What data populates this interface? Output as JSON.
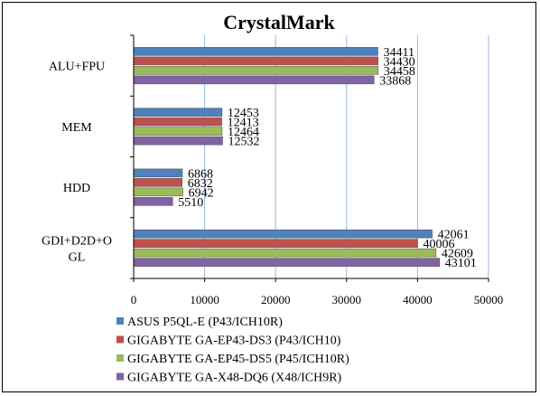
{
  "chart_data": {
    "type": "bar",
    "orientation": "horizontal",
    "title": "CrystalMark",
    "categories": [
      "ALU+FPU",
      "MEM",
      "HDD",
      "GDI+D2D+OGL"
    ],
    "category_display": [
      [
        "ALU+FPU"
      ],
      [
        "MEM"
      ],
      [
        "HDD"
      ],
      [
        "GDI+D2D+O",
        "GL"
      ]
    ],
    "xlim": [
      0,
      50000
    ],
    "xticks": [
      0,
      10000,
      20000,
      30000,
      40000,
      50000
    ],
    "xtick_labels": [
      "0",
      "10000",
      "20000",
      "30000",
      "40000",
      "50000"
    ],
    "grid": true,
    "legend_position": "bottom",
    "series": [
      {
        "name": "ASUS P5QL-E (P43/ICH10R)",
        "color": "#4F81BD",
        "values": [
          34411,
          12453,
          6868,
          42061
        ]
      },
      {
        "name": "GIGABYTE GA-EP43-DS3 (P43/ICH10)",
        "color": "#C0504D",
        "values": [
          34430,
          12413,
          6832,
          40006
        ]
      },
      {
        "name": "GIGABYTE GA-EP45-DS5 (P45/ICH10R)",
        "color": "#9BBB59",
        "values": [
          34458,
          12464,
          6942,
          42609
        ]
      },
      {
        "name": "GIGABYTE GA-X48-DQ6 (X48/ICH9R)",
        "color": "#8064A2",
        "values": [
          33868,
          12532,
          5510,
          43101
        ]
      }
    ],
    "gridline_color": "#9BB7E0"
  }
}
